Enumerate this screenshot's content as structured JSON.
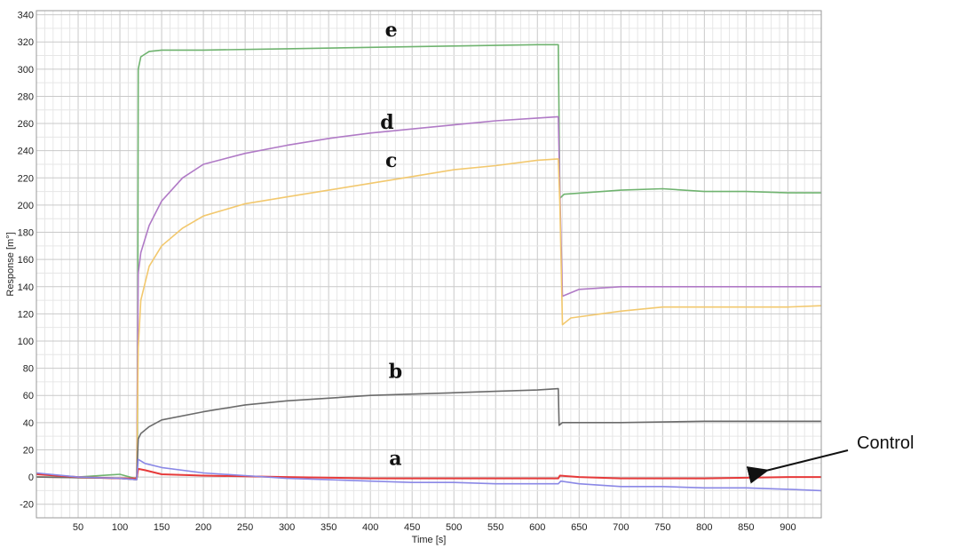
{
  "chart_data": {
    "type": "line",
    "xlabel": "Time [s]",
    "ylabel": "Response [m°]",
    "xlim": [
      0,
      940
    ],
    "ylim": [
      -30,
      343
    ],
    "x_ticks": [
      50,
      100,
      150,
      200,
      250,
      300,
      350,
      400,
      450,
      500,
      550,
      600,
      650,
      700,
      750,
      800,
      850,
      900
    ],
    "y_ticks": [
      -20,
      0,
      20,
      40,
      60,
      80,
      100,
      120,
      140,
      160,
      180,
      200,
      220,
      240,
      260,
      280,
      300,
      320,
      340
    ],
    "grid": true,
    "series": [
      {
        "name": "e",
        "color": "#6fb36f",
        "points": [
          [
            0,
            0
          ],
          [
            50,
            0
          ],
          [
            100,
            2
          ],
          [
            118,
            -1
          ],
          [
            121,
            0
          ],
          [
            122,
            300
          ],
          [
            125,
            309
          ],
          [
            135,
            313
          ],
          [
            150,
            314
          ],
          [
            200,
            314
          ],
          [
            300,
            315
          ],
          [
            400,
            316
          ],
          [
            500,
            317
          ],
          [
            600,
            318
          ],
          [
            625,
            318
          ],
          [
            627,
            205
          ],
          [
            632,
            208
          ],
          [
            700,
            211
          ],
          [
            750,
            212
          ],
          [
            800,
            210
          ],
          [
            850,
            210
          ],
          [
            900,
            209
          ],
          [
            940,
            209
          ]
        ]
      },
      {
        "name": "d",
        "color": "#b07ac6",
        "points": [
          [
            0,
            0
          ],
          [
            100,
            -1
          ],
          [
            120,
            -2
          ],
          [
            122,
            150
          ],
          [
            125,
            165
          ],
          [
            135,
            185
          ],
          [
            150,
            203
          ],
          [
            175,
            220
          ],
          [
            200,
            230
          ],
          [
            250,
            238
          ],
          [
            300,
            244
          ],
          [
            350,
            249
          ],
          [
            400,
            253
          ],
          [
            450,
            256
          ],
          [
            500,
            259
          ],
          [
            550,
            262
          ],
          [
            600,
            264
          ],
          [
            625,
            265
          ],
          [
            627,
            210
          ],
          [
            630,
            133
          ],
          [
            650,
            138
          ],
          [
            700,
            140
          ],
          [
            800,
            140
          ],
          [
            900,
            140
          ],
          [
            940,
            140
          ]
        ]
      },
      {
        "name": "c",
        "color": "#f2c86e",
        "points": [
          [
            0,
            0
          ],
          [
            100,
            -1
          ],
          [
            120,
            -2
          ],
          [
            122,
            95
          ],
          [
            125,
            130
          ],
          [
            135,
            155
          ],
          [
            150,
            170
          ],
          [
            175,
            183
          ],
          [
            200,
            192
          ],
          [
            250,
            201
          ],
          [
            300,
            206
          ],
          [
            350,
            211
          ],
          [
            400,
            216
          ],
          [
            450,
            221
          ],
          [
            500,
            226
          ],
          [
            550,
            229
          ],
          [
            600,
            233
          ],
          [
            625,
            234
          ],
          [
            627,
            200
          ],
          [
            630,
            112
          ],
          [
            640,
            117
          ],
          [
            700,
            122
          ],
          [
            750,
            125
          ],
          [
            800,
            125
          ],
          [
            900,
            125
          ],
          [
            940,
            126
          ]
        ]
      },
      {
        "name": "b",
        "color": "#6b6b6b",
        "points": [
          [
            0,
            0
          ],
          [
            100,
            -1
          ],
          [
            120,
            -2
          ],
          [
            122,
            28
          ],
          [
            125,
            32
          ],
          [
            135,
            37
          ],
          [
            150,
            42
          ],
          [
            200,
            48
          ],
          [
            250,
            53
          ],
          [
            300,
            56
          ],
          [
            350,
            58
          ],
          [
            400,
            60
          ],
          [
            450,
            61
          ],
          [
            500,
            62
          ],
          [
            550,
            63
          ],
          [
            600,
            64
          ],
          [
            625,
            65
          ],
          [
            626,
            38
          ],
          [
            630,
            40
          ],
          [
            700,
            40
          ],
          [
            800,
            41
          ],
          [
            900,
            41
          ],
          [
            940,
            41
          ]
        ]
      },
      {
        "name": "a",
        "color": "#e63a3a",
        "points": [
          [
            0,
            2
          ],
          [
            50,
            0
          ],
          [
            100,
            -1
          ],
          [
            120,
            -1
          ],
          [
            122,
            6
          ],
          [
            130,
            5
          ],
          [
            150,
            2
          ],
          [
            200,
            1
          ],
          [
            300,
            0
          ],
          [
            400,
            -1
          ],
          [
            500,
            -1
          ],
          [
            600,
            -1
          ],
          [
            625,
            -1
          ],
          [
            627,
            1
          ],
          [
            650,
            0
          ],
          [
            700,
            -1
          ],
          [
            800,
            -1
          ],
          [
            900,
            0
          ],
          [
            940,
            0
          ]
        ]
      },
      {
        "name": "Control",
        "color": "#8a88e6",
        "points": [
          [
            0,
            3
          ],
          [
            50,
            0
          ],
          [
            100,
            -1
          ],
          [
            120,
            -2
          ],
          [
            122,
            13
          ],
          [
            130,
            10
          ],
          [
            150,
            7
          ],
          [
            200,
            3
          ],
          [
            250,
            1
          ],
          [
            300,
            -1
          ],
          [
            350,
            -2
          ],
          [
            400,
            -3
          ],
          [
            450,
            -4
          ],
          [
            500,
            -4
          ],
          [
            550,
            -5
          ],
          [
            600,
            -5
          ],
          [
            625,
            -5
          ],
          [
            628,
            -3
          ],
          [
            650,
            -5
          ],
          [
            700,
            -7
          ],
          [
            750,
            -7
          ],
          [
            800,
            -8
          ],
          [
            850,
            -8
          ],
          [
            900,
            -9
          ],
          [
            940,
            -10
          ]
        ]
      }
    ],
    "annotations": [
      {
        "text": "e",
        "x": 425,
        "y": 324
      },
      {
        "text": "d",
        "x": 420,
        "y": 256
      },
      {
        "text": "c",
        "x": 425,
        "y": 228
      },
      {
        "text": "b",
        "x": 430,
        "y": 73
      },
      {
        "text": "a",
        "x": 430,
        "y": 9
      },
      {
        "text": "Control",
        "x": 880,
        "y": 2,
        "arrow": true
      }
    ]
  }
}
